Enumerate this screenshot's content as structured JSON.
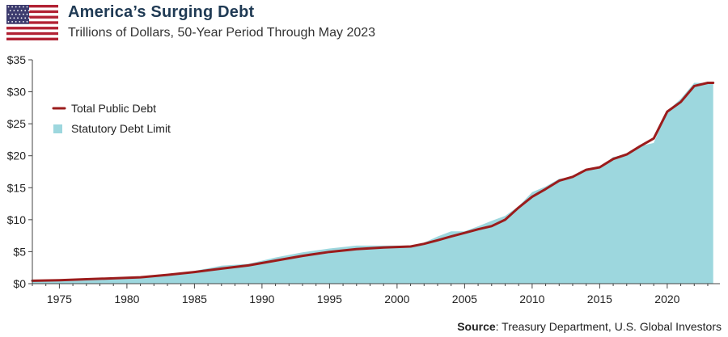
{
  "header": {
    "title": "America’s Surging Debt",
    "subtitle": "Trillions of Dollars, 50-Year Period Through May 2023",
    "flag_icon": "us-flag-icon"
  },
  "source": {
    "label": "Source",
    "text": ": Treasury Department, U.S. Global Investors"
  },
  "colors": {
    "debt_line": "#9b1c1c",
    "limit_area": "#9dd7de",
    "axis": "#444444",
    "flag_red": "#b22234",
    "flag_blue": "#3c3b6e"
  },
  "chart_data": {
    "type": "area",
    "title": "America’s Surging Debt",
    "subtitle": "Trillions of Dollars, 50-Year Period Through May 2023",
    "xlabel": "",
    "ylabel": "",
    "xlim": [
      1973,
      2023.9
    ],
    "ylim": [
      0,
      35
    ],
    "x_ticks": [
      1975,
      1980,
      1985,
      1990,
      1995,
      2000,
      2005,
      2010,
      2015,
      2020
    ],
    "y_ticks": [
      0,
      5,
      10,
      15,
      20,
      25,
      30,
      35
    ],
    "y_tick_labels": [
      "$0",
      "$5",
      "$10",
      "$15",
      "$20",
      "$25",
      "$30",
      "$35"
    ],
    "legend_position": "top-left",
    "grid": false,
    "series": [
      {
        "name": "Total Public Debt",
        "kind": "line",
        "points": [
          [
            1973,
            0.46
          ],
          [
            1975,
            0.53
          ],
          [
            1977,
            0.7
          ],
          [
            1979,
            0.83
          ],
          [
            1981,
            1.0
          ],
          [
            1983,
            1.38
          ],
          [
            1985,
            1.82
          ],
          [
            1987,
            2.35
          ],
          [
            1989,
            2.86
          ],
          [
            1991,
            3.6
          ],
          [
            1993,
            4.35
          ],
          [
            1995,
            4.97
          ],
          [
            1997,
            5.41
          ],
          [
            1999,
            5.66
          ],
          [
            2001,
            5.81
          ],
          [
            2002,
            6.23
          ],
          [
            2003,
            6.78
          ],
          [
            2004,
            7.38
          ],
          [
            2005,
            7.93
          ],
          [
            2006,
            8.5
          ],
          [
            2007,
            9.0
          ],
          [
            2008,
            10.0
          ],
          [
            2009,
            11.9
          ],
          [
            2010,
            13.6
          ],
          [
            2011,
            14.8
          ],
          [
            2012,
            16.1
          ],
          [
            2013,
            16.7
          ],
          [
            2014,
            17.8
          ],
          [
            2015,
            18.2
          ],
          [
            2016,
            19.5
          ],
          [
            2017,
            20.2
          ],
          [
            2018,
            21.5
          ],
          [
            2019,
            22.7
          ],
          [
            2020,
            26.9
          ],
          [
            2021,
            28.4
          ],
          [
            2022,
            30.9
          ],
          [
            2023,
            31.4
          ],
          [
            2023.4,
            31.4
          ]
        ]
      },
      {
        "name": "Statutory Debt Limit",
        "kind": "area",
        "points": [
          [
            1973,
            0.47
          ],
          [
            1975,
            0.58
          ],
          [
            1977,
            0.75
          ],
          [
            1979,
            0.88
          ],
          [
            1981,
            1.1
          ],
          [
            1983,
            1.45
          ],
          [
            1985,
            2.0
          ],
          [
            1987,
            2.8
          ],
          [
            1989,
            3.1
          ],
          [
            1991,
            4.1
          ],
          [
            1993,
            4.9
          ],
          [
            1995,
            5.5
          ],
          [
            1997,
            5.95
          ],
          [
            1999,
            5.95
          ],
          [
            2001,
            5.95
          ],
          [
            2002,
            6.4
          ],
          [
            2003,
            7.38
          ],
          [
            2004,
            8.18
          ],
          [
            2005,
            8.18
          ],
          [
            2006,
            8.97
          ],
          [
            2007,
            9.82
          ],
          [
            2008,
            10.6
          ],
          [
            2009,
            12.1
          ],
          [
            2010,
            14.3
          ],
          [
            2011,
            15.2
          ],
          [
            2012,
            16.4
          ],
          [
            2013,
            16.7
          ],
          [
            2014,
            17.8
          ],
          [
            2015,
            18.1
          ],
          [
            2016,
            19.8
          ],
          [
            2017,
            20.2
          ],
          [
            2018,
            21.5
          ],
          [
            2019,
            22.0
          ],
          [
            2020,
            27.0
          ],
          [
            2021,
            28.9
          ],
          [
            2022,
            31.4
          ],
          [
            2023,
            31.4
          ],
          [
            2023.4,
            31.4
          ]
        ]
      }
    ]
  }
}
